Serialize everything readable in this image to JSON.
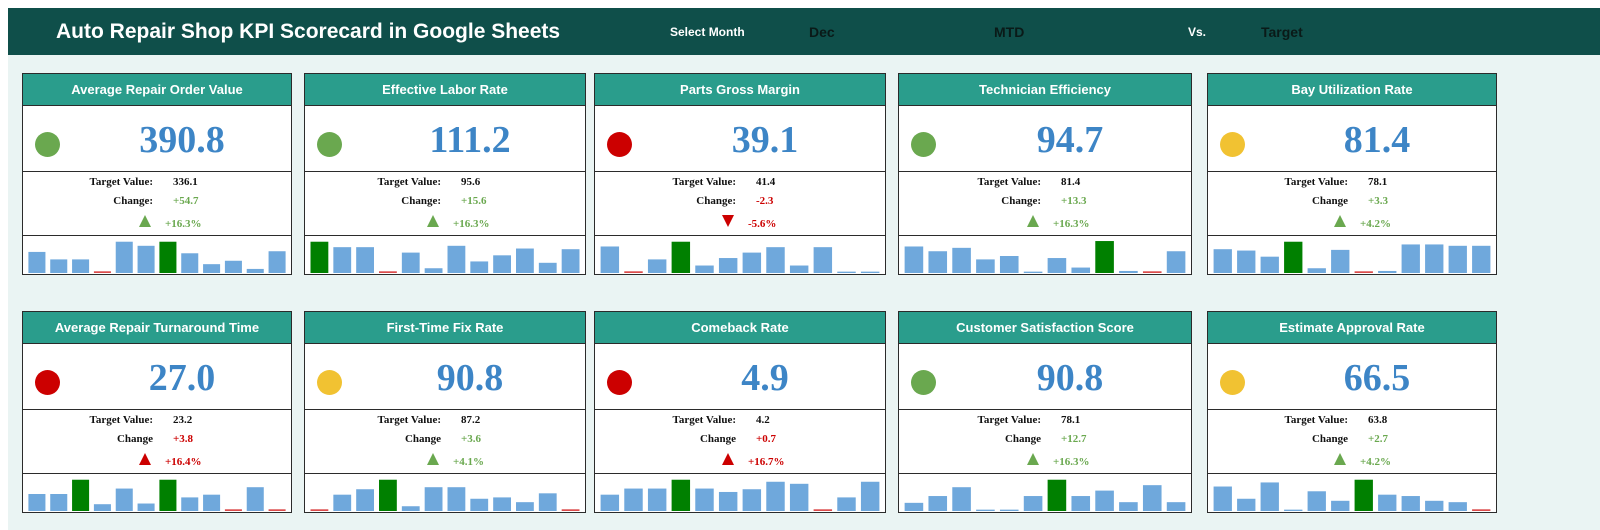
{
  "header": {
    "title": "Auto Repair Shop KPI Scorecard in Google Sheets",
    "select_month_label": "Select Month",
    "month": "Dec",
    "period": "MTD",
    "vs_label": "Vs.",
    "comparison": "Target"
  },
  "colors": {
    "header_bg": "#0f4f4a",
    "card_header_bg": "#2a9d8c",
    "value_blue": "#3d85c6",
    "good": "#6aa84f",
    "bad": "#cc0000",
    "warn": "#f1c232",
    "bar_normal": "#6fa8dc",
    "bar_highlight": "#008000"
  },
  "cards": [
    {
      "title": "Average Repair Order Value",
      "value": "390.8",
      "status": "green",
      "target_label": "Target Value:",
      "target": "336.1",
      "change_label": "Change:",
      "change": "+54.7",
      "change_color": "good",
      "pct": "+16.3%",
      "arrow": "up",
      "arrow_color": "good",
      "bars": [
        0.62,
        0.4,
        0.4,
        0.0,
        0.92,
        0.8,
        0.92,
        0.58,
        0.26,
        0.36,
        0.12,
        0.64
      ],
      "highlight": 6
    },
    {
      "title": "Effective Labor Rate",
      "value": "111.2",
      "status": "green",
      "target_label": "Target Value:",
      "target": "95.6",
      "change_label": "Change:",
      "change": "+15.6",
      "change_color": "good",
      "pct": "+16.3%",
      "arrow": "up",
      "arrow_color": "good",
      "bars": [
        0.92,
        0.76,
        0.76,
        0.0,
        0.6,
        0.14,
        0.8,
        0.34,
        0.52,
        0.72,
        0.3,
        0.7
      ],
      "highlight": 0
    },
    {
      "title": "Parts Gross Margin",
      "value": "39.1",
      "status": "red",
      "target_label": "Target Value:",
      "target": "41.4",
      "change_label": "Change:",
      "change": "-2.3",
      "change_color": "bad",
      "pct": "-5.6%",
      "arrow": "down",
      "arrow_color": "bad",
      "bars": [
        0.78,
        0.0,
        0.4,
        0.92,
        0.22,
        0.44,
        0.6,
        0.76,
        0.22,
        0.76,
        0.04,
        0.04
      ],
      "highlight": 3
    },
    {
      "title": "Technician Efficiency",
      "value": "94.7",
      "status": "green",
      "target_label": "Target Value:",
      "target": "81.4",
      "change_label": "Change:",
      "change": "+13.3",
      "change_color": "good",
      "pct": "+16.3%",
      "arrow": "up",
      "arrow_color": "good",
      "bars": [
        0.78,
        0.64,
        0.74,
        0.4,
        0.5,
        0.04,
        0.44,
        0.16,
        0.94,
        0.06,
        0.0,
        0.64
      ],
      "highlight": 8
    },
    {
      "title": "Bay Utilization Rate",
      "value": "81.4",
      "status": "yellow",
      "target_label": "Target Value:",
      "target": "78.1",
      "change_label": "Change",
      "change": "+3.3",
      "change_color": "good",
      "pct": "+4.2%",
      "arrow": "up",
      "arrow_color": "good",
      "bars": [
        0.7,
        0.66,
        0.48,
        0.92,
        0.14,
        0.68,
        0.0,
        0.06,
        0.84,
        0.84,
        0.8,
        0.8
      ],
      "highlight": 3
    },
    {
      "title": "Average Repair Turnaround Time",
      "value": "27.0",
      "status": "red",
      "target_label": "Target Value:",
      "target": "23.2",
      "change_label": "Change",
      "change": "+3.8",
      "change_color": "bad",
      "pct": "+16.4%",
      "arrow": "up",
      "arrow_color": "bad",
      "bars": [
        0.5,
        0.5,
        0.92,
        0.2,
        0.66,
        0.22,
        0.92,
        0.4,
        0.48,
        0.0,
        0.7,
        0.0
      ],
      "highlight": [
        2,
        6
      ]
    },
    {
      "title": "First-Time Fix Rate",
      "value": "90.8",
      "status": "yellow",
      "target_label": "Target Value:",
      "target": "87.2",
      "change_label": "Change",
      "change": "+3.6",
      "change_color": "good",
      "pct": "+4.1%",
      "arrow": "up",
      "arrow_color": "good",
      "bars": [
        0.0,
        0.48,
        0.64,
        0.92,
        0.14,
        0.7,
        0.7,
        0.36,
        0.4,
        0.26,
        0.52,
        0.0
      ],
      "highlight": 3
    },
    {
      "title": "Comeback Rate",
      "value": "4.9",
      "status": "red",
      "target_label": "Target Value:",
      "target": "4.2",
      "change_label": "Change",
      "change": "+0.7",
      "change_color": "bad",
      "pct": "+16.7%",
      "arrow": "up",
      "arrow_color": "bad",
      "bars": [
        0.48,
        0.66,
        0.66,
        0.92,
        0.66,
        0.56,
        0.64,
        0.86,
        0.8,
        0.0,
        0.4,
        0.86
      ],
      "highlight": 3
    },
    {
      "title": "Customer Satisfaction Score",
      "value": "90.8",
      "status": "green",
      "target_label": "Target Value:",
      "target": "78.1",
      "change_label": "Change",
      "change": "+12.7",
      "change_color": "good",
      "pct": "+16.3%",
      "arrow": "up",
      "arrow_color": "good",
      "bars": [
        0.24,
        0.44,
        0.7,
        0.04,
        0.04,
        0.44,
        0.92,
        0.44,
        0.6,
        0.26,
        0.76,
        0.26
      ],
      "highlight": 6
    },
    {
      "title": "Estimate Approval Rate",
      "value": "66.5",
      "status": "yellow",
      "target_label": "Target Value:",
      "target": "63.8",
      "change_label": "Change",
      "change": "+2.7",
      "change_color": "good",
      "pct": "+4.2%",
      "arrow": "up",
      "arrow_color": "good",
      "bars": [
        0.72,
        0.36,
        0.84,
        0.04,
        0.58,
        0.3,
        0.92,
        0.48,
        0.44,
        0.3,
        0.26,
        0.0
      ],
      "highlight": 6
    }
  ]
}
